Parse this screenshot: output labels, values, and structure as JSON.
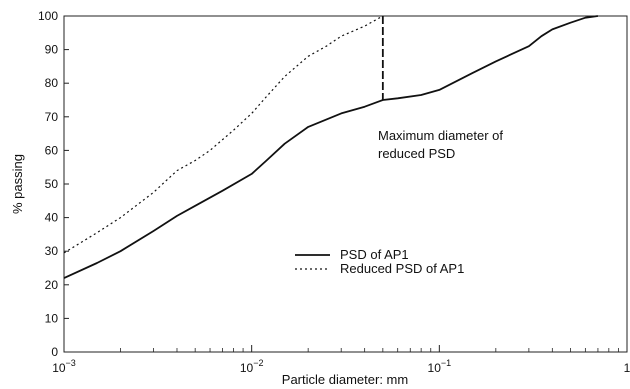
{
  "chart_data": {
    "type": "line",
    "title": "",
    "xlabel": "Particle diameter: mm",
    "ylabel": "% passing",
    "xscale": "log",
    "xlim": [
      0.001,
      1
    ],
    "ylim": [
      0,
      100
    ],
    "grid": false,
    "legend_position": "center-left",
    "x_tick_labels": [
      {
        "x": 0.001,
        "base": "10",
        "exp": "−3"
      },
      {
        "x": 0.01,
        "base": "10",
        "exp": "−2"
      },
      {
        "x": 0.1,
        "base": "10",
        "exp": "−1"
      },
      {
        "x": 1,
        "base": "1",
        "exp": ""
      }
    ],
    "y_ticks": [
      0,
      10,
      20,
      30,
      40,
      50,
      60,
      70,
      80,
      90,
      100
    ],
    "series": [
      {
        "name": "PSD of AP1",
        "line_style": "solid",
        "x": [
          0.001,
          0.0015,
          0.002,
          0.003,
          0.004,
          0.005,
          0.007,
          0.01,
          0.012,
          0.015,
          0.02,
          0.03,
          0.04,
          0.05,
          0.06,
          0.08,
          0.1,
          0.15,
          0.2,
          0.3,
          0.35,
          0.4,
          0.5,
          0.6,
          0.7
        ],
        "values": [
          22,
          26.5,
          30,
          36,
          40.5,
          43.5,
          48,
          53,
          57,
          62,
          67,
          71,
          73,
          75,
          75.5,
          76.5,
          78,
          83,
          86.5,
          91,
          94,
          96,
          98,
          99.5,
          100
        ]
      },
      {
        "name": "Reduced PSD of AP1",
        "line_style": "dotted",
        "x": [
          0.001,
          0.0015,
          0.002,
          0.003,
          0.004,
          0.005,
          0.006,
          0.008,
          0.01,
          0.012,
          0.015,
          0.02,
          0.025,
          0.03,
          0.04,
          0.05
        ],
        "values": [
          29.5,
          35.5,
          40,
          47.5,
          54,
          57,
          60,
          66,
          71,
          76,
          82,
          88,
          91,
          94,
          97,
          100
        ]
      }
    ],
    "annotations": [
      {
        "text_lines": [
          "Maximum diameter of",
          "reduced PSD"
        ],
        "x": 0.05,
        "line_from_y": 100,
        "line_to_y": 75,
        "line_style": "dashed"
      }
    ]
  }
}
